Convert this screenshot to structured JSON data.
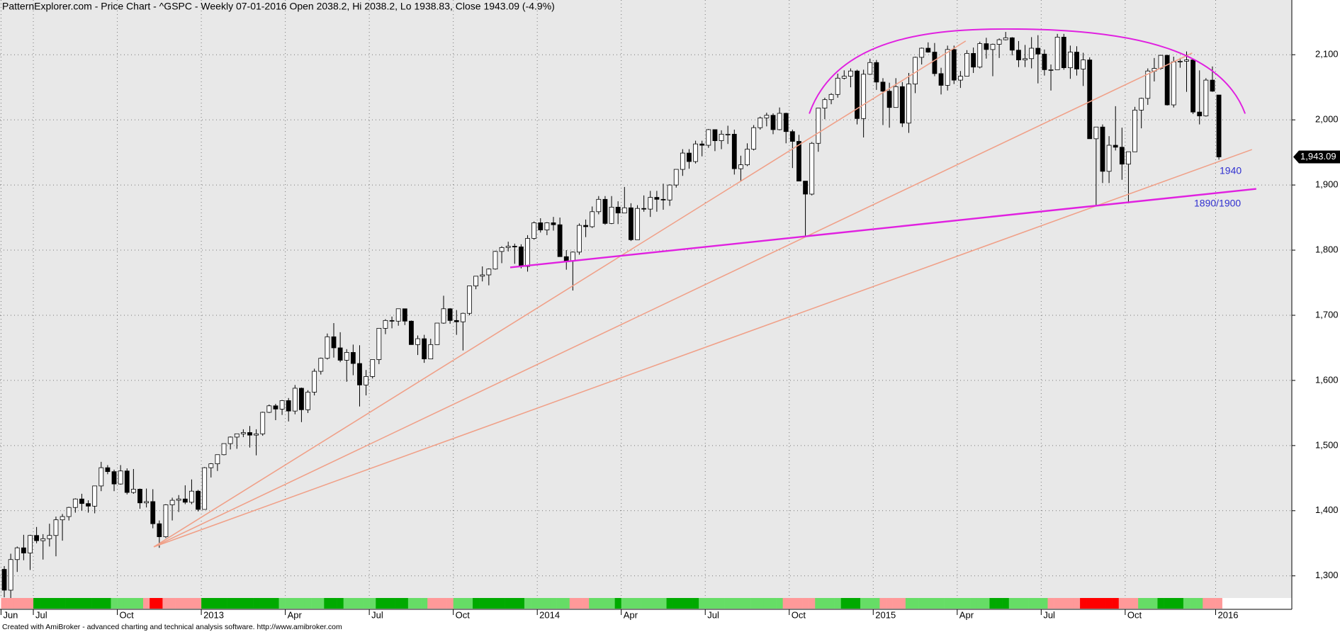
{
  "chart_data": {
    "type": "candlestick",
    "title": "PatternExplorer.com - Price Chart - ^GSPC - Weekly 07-01-2016 Open 2038.2, Hi 2038.2, Lo 1938.83, Close 1943.09 (-4.9%)",
    "categories": [
      "Jun",
      null,
      null,
      null,
      null,
      "Jul",
      null,
      null,
      null,
      null,
      null,
      null,
      null,
      null,
      null,
      null,
      null,
      null,
      "Oct",
      null,
      null,
      null,
      null,
      null,
      null,
      null,
      null,
      null,
      null,
      null,
      null,
      "2013",
      null,
      null,
      null,
      null,
      null,
      null,
      null,
      null,
      null,
      null,
      null,
      null,
      "Apr",
      null,
      null,
      null,
      null,
      null,
      null,
      null,
      null,
      null,
      null,
      null,
      null,
      "Jul",
      null,
      null,
      null,
      null,
      null,
      null,
      null,
      null,
      null,
      null,
      null,
      null,
      "Oct",
      null,
      null,
      null,
      null,
      null,
      null,
      null,
      null,
      null,
      null,
      null,
      null,
      "2014",
      null,
      null,
      null,
      null,
      null,
      null,
      null,
      null,
      null,
      null,
      null,
      null,
      "Apr",
      null,
      null,
      null,
      null,
      null,
      null,
      null,
      null,
      null,
      null,
      null,
      null,
      "Jul",
      null,
      null,
      null,
      null,
      null,
      null,
      null,
      null,
      null,
      null,
      null,
      null,
      "Oct",
      null,
      null,
      null,
      null,
      null,
      null,
      null,
      null,
      null,
      null,
      null,
      null,
      "2015",
      null,
      null,
      null,
      null,
      null,
      null,
      null,
      null,
      null,
      null,
      null,
      null,
      "Apr",
      null,
      null,
      null,
      null,
      null,
      null,
      null,
      null,
      null,
      null,
      null,
      null,
      "Jul",
      null,
      null,
      null,
      null,
      null,
      null,
      null,
      null,
      null,
      null,
      null,
      null,
      "Oct",
      null,
      null,
      null,
      null,
      null,
      null,
      null,
      null,
      null,
      null,
      null,
      null,
      null,
      "2016"
    ],
    "ohlc": [
      [
        1310,
        1315,
        1267,
        1278
      ],
      [
        1278,
        1334,
        1266,
        1325
      ],
      [
        1325,
        1345,
        1306,
        1343
      ],
      [
        1343,
        1363,
        1324,
        1335
      ],
      [
        1335,
        1363,
        1309,
        1362
      ],
      [
        1362,
        1375,
        1350,
        1354
      ],
      [
        1354,
        1364,
        1325,
        1357
      ],
      [
        1357,
        1380,
        1345,
        1362
      ],
      [
        1362,
        1391,
        1330,
        1386
      ],
      [
        1386,
        1395,
        1354,
        1391
      ],
      [
        1391,
        1406,
        1385,
        1405
      ],
      [
        1405,
        1419,
        1397,
        1418
      ],
      [
        1418,
        1426,
        1400,
        1411
      ],
      [
        1411,
        1416,
        1397,
        1407
      ],
      [
        1407,
        1438,
        1396,
        1438
      ],
      [
        1438,
        1475,
        1430,
        1466
      ],
      [
        1466,
        1470,
        1456,
        1460
      ],
      [
        1460,
        1463,
        1430,
        1441
      ],
      [
        1441,
        1470,
        1440,
        1461
      ],
      [
        1461,
        1465,
        1425,
        1428
      ],
      [
        1428,
        1464,
        1426,
        1433
      ],
      [
        1433,
        1434,
        1403,
        1412
      ],
      [
        1412,
        1434,
        1405,
        1414
      ],
      [
        1414,
        1433,
        1373,
        1380
      ],
      [
        1380,
        1385,
        1343,
        1360
      ],
      [
        1360,
        1410,
        1358,
        1409
      ],
      [
        1409,
        1420,
        1385,
        1416
      ],
      [
        1416,
        1424,
        1398,
        1418
      ],
      [
        1418,
        1439,
        1410,
        1413
      ],
      [
        1413,
        1448,
        1410,
        1430
      ],
      [
        1430,
        1432,
        1399,
        1402
      ],
      [
        1402,
        1467,
        1402,
        1466
      ],
      [
        1466,
        1473,
        1451,
        1472
      ],
      [
        1472,
        1486,
        1461,
        1486
      ],
      [
        1486,
        1503,
        1485,
        1503
      ],
      [
        1503,
        1514,
        1494,
        1513
      ],
      [
        1513,
        1518,
        1495,
        1518
      ],
      [
        1518,
        1525,
        1513,
        1520
      ],
      [
        1520,
        1530,
        1497,
        1516
      ],
      [
        1516,
        1525,
        1485,
        1518
      ],
      [
        1518,
        1552,
        1515,
        1551
      ],
      [
        1551,
        1563,
        1550,
        1561
      ],
      [
        1561,
        1564,
        1539,
        1556
      ],
      [
        1556,
        1570,
        1547,
        1569
      ],
      [
        1569,
        1573,
        1537,
        1553
      ],
      [
        1553,
        1593,
        1548,
        1588
      ],
      [
        1588,
        1589,
        1536,
        1555
      ],
      [
        1555,
        1585,
        1550,
        1582
      ],
      [
        1582,
        1618,
        1577,
        1614
      ],
      [
        1614,
        1635,
        1609,
        1634
      ],
      [
        1634,
        1672,
        1632,
        1667
      ],
      [
        1667,
        1688,
        1635,
        1650
      ],
      [
        1650,
        1674,
        1628,
        1631
      ],
      [
        1631,
        1648,
        1598,
        1643
      ],
      [
        1643,
        1655,
        1608,
        1626
      ],
      [
        1626,
        1654,
        1560,
        1593
      ],
      [
        1593,
        1616,
        1577,
        1606
      ],
      [
        1606,
        1632,
        1603,
        1632
      ],
      [
        1632,
        1680,
        1625,
        1680
      ],
      [
        1680,
        1694,
        1671,
        1692
      ],
      [
        1692,
        1698,
        1680,
        1691
      ],
      [
        1691,
        1710,
        1684,
        1710
      ],
      [
        1710,
        1710,
        1685,
        1691
      ],
      [
        1691,
        1692,
        1655,
        1655
      ],
      [
        1655,
        1669,
        1639,
        1664
      ],
      [
        1664,
        1670,
        1627,
        1633
      ],
      [
        1633,
        1664,
        1633,
        1655
      ],
      [
        1655,
        1688,
        1655,
        1688
      ],
      [
        1688,
        1730,
        1687,
        1710
      ],
      [
        1710,
        1711,
        1687,
        1692
      ],
      [
        1692,
        1708,
        1670,
        1690
      ],
      [
        1690,
        1704,
        1646,
        1703
      ],
      [
        1703,
        1745,
        1700,
        1745
      ],
      [
        1745,
        1760,
        1740,
        1760
      ],
      [
        1760,
        1775,
        1752,
        1762
      ],
      [
        1762,
        1772,
        1746,
        1771
      ],
      [
        1771,
        1799,
        1770,
        1798
      ],
      [
        1798,
        1806,
        1780,
        1804
      ],
      [
        1804,
        1813,
        1798,
        1806
      ],
      [
        1806,
        1810,
        1779,
        1805
      ],
      [
        1805,
        1809,
        1772,
        1775
      ],
      [
        1775,
        1823,
        1767,
        1818
      ],
      [
        1818,
        1844,
        1816,
        1842
      ],
      [
        1842,
        1849,
        1827,
        1831
      ],
      [
        1831,
        1843,
        1823,
        1842
      ],
      [
        1842,
        1851,
        1830,
        1839
      ],
      [
        1839,
        1850,
        1790,
        1790
      ],
      [
        1790,
        1800,
        1770,
        1783
      ],
      [
        1783,
        1798,
        1738,
        1797
      ],
      [
        1797,
        1841,
        1793,
        1838
      ],
      [
        1838,
        1847,
        1820,
        1836
      ],
      [
        1836,
        1867,
        1834,
        1859
      ],
      [
        1859,
        1883,
        1855,
        1878
      ],
      [
        1878,
        1883,
        1839,
        1841
      ],
      [
        1841,
        1883,
        1840,
        1866
      ],
      [
        1866,
        1875,
        1840,
        1857
      ],
      [
        1857,
        1897,
        1857,
        1865
      ],
      [
        1865,
        1872,
        1814,
        1816
      ],
      [
        1816,
        1869,
        1816,
        1864
      ],
      [
        1864,
        1884,
        1859,
        1863
      ],
      [
        1863,
        1891,
        1851,
        1881
      ],
      [
        1881,
        1891,
        1859,
        1878
      ],
      [
        1878,
        1902,
        1862,
        1877
      ],
      [
        1877,
        1901,
        1868,
        1900
      ],
      [
        1900,
        1924,
        1896,
        1924
      ],
      [
        1924,
        1955,
        1914,
        1949
      ],
      [
        1949,
        1955,
        1925,
        1936
      ],
      [
        1936,
        1968,
        1933,
        1963
      ],
      [
        1963,
        1968,
        1944,
        1961
      ],
      [
        1961,
        1986,
        1957,
        1985
      ],
      [
        1985,
        1985,
        1952,
        1968
      ],
      [
        1968,
        1984,
        1955,
        1978
      ],
      [
        1978,
        1991,
        1963,
        1978
      ],
      [
        1978,
        1985,
        1916,
        1925
      ],
      [
        1925,
        1945,
        1905,
        1931
      ],
      [
        1931,
        1964,
        1929,
        1955
      ],
      [
        1955,
        1992,
        1953,
        1988
      ],
      [
        1988,
        2005,
        1985,
        2003
      ],
      [
        2003,
        2011,
        1990,
        2007
      ],
      [
        2007,
        2010,
        1978,
        1985
      ],
      [
        1985,
        2019,
        1984,
        2010
      ],
      [
        2010,
        2011,
        1964,
        1982
      ],
      [
        1982,
        1985,
        1926,
        1967
      ],
      [
        1967,
        1977,
        1906,
        1906
      ],
      [
        1906,
        1906,
        1821,
        1886
      ],
      [
        1886,
        1966,
        1884,
        1964
      ],
      [
        1964,
        2018,
        1951,
        2018
      ],
      [
        2018,
        2034,
        2001,
        2031
      ],
      [
        2031,
        2041,
        2024,
        2039
      ],
      [
        2039,
        2071,
        2034,
        2064
      ],
      [
        2064,
        2076,
        2062,
        2067
      ],
      [
        2067,
        2079,
        2050,
        2075
      ],
      [
        2075,
        2077,
        1993,
        2002
      ],
      [
        2002,
        2077,
        1973,
        2070
      ],
      [
        2070,
        2094,
        2069,
        2088
      ],
      [
        2088,
        2092,
        2046,
        2058
      ],
      [
        2058,
        2064,
        1992,
        2044
      ],
      [
        2044,
        2057,
        1988,
        2019
      ],
      [
        2019,
        2064,
        2019,
        2051
      ],
      [
        2051,
        2058,
        1989,
        1995
      ],
      [
        1995,
        2072,
        1980,
        2055
      ],
      [
        2055,
        2097,
        2041,
        2096
      ],
      [
        2096,
        2111,
        2085,
        2110
      ],
      [
        2110,
        2119,
        2103,
        2104
      ],
      [
        2104,
        2118,
        2067,
        2071
      ],
      [
        2071,
        2080,
        2039,
        2053
      ],
      [
        2053,
        2114,
        2045,
        2108
      ],
      [
        2108,
        2114,
        2055,
        2061
      ],
      [
        2061,
        2075,
        2049,
        2067
      ],
      [
        2067,
        2107,
        2067,
        2102
      ],
      [
        2102,
        2111,
        2072,
        2081
      ],
      [
        2081,
        2120,
        2079,
        2117
      ],
      [
        2117,
        2126,
        2094,
        2108
      ],
      [
        2108,
        2117,
        2067,
        2116
      ],
      [
        2116,
        2125,
        2095,
        2123
      ],
      [
        2123,
        2135,
        2122,
        2126
      ],
      [
        2126,
        2127,
        2099,
        2107
      ],
      [
        2107,
        2121,
        2081,
        2092
      ],
      [
        2092,
        2115,
        2081,
        2094
      ],
      [
        2094,
        2127,
        2079,
        2110
      ],
      [
        2110,
        2130,
        2056,
        2101
      ],
      [
        2101,
        2108,
        2068,
        2077
      ],
      [
        2077,
        2085,
        2045,
        2077
      ],
      [
        2077,
        2132,
        2077,
        2127
      ],
      [
        2127,
        2132,
        2077,
        2080
      ],
      [
        2080,
        2114,
        2063,
        2104
      ],
      [
        2104,
        2113,
        2068,
        2078
      ],
      [
        2078,
        2103,
        2052,
        2092
      ],
      [
        2092,
        2096,
        1971,
        1971
      ],
      [
        1971,
        1989,
        1867,
        1989
      ],
      [
        1989,
        1993,
        1903,
        1921
      ],
      [
        1921,
        1975,
        1903,
        1961
      ],
      [
        1961,
        2021,
        1953,
        1958
      ],
      [
        1958,
        1988,
        1908,
        1932
      ],
      [
        1932,
        1951,
        1872,
        1951
      ],
      [
        1951,
        2020,
        1951,
        2015
      ],
      [
        2015,
        2034,
        1987,
        2033
      ],
      [
        2033,
        2079,
        2023,
        2075
      ],
      [
        2075,
        2095,
        2059,
        2079
      ],
      [
        2079,
        2100,
        2077,
        2099
      ],
      [
        2099,
        2100,
        2022,
        2023
      ],
      [
        2023,
        2097,
        2019,
        2089
      ],
      [
        2089,
        2095,
        2080,
        2090
      ],
      [
        2090,
        2105,
        2043,
        2092
      ],
      [
        2092,
        2093,
        2009,
        2012
      ],
      [
        2012,
        2076,
        1993,
        2006
      ],
      [
        2006,
        2064,
        2005,
        2061
      ],
      [
        2061,
        2082,
        2043,
        2044
      ],
      [
        2038.2,
        2038.2,
        1938.83,
        1943.09
      ]
    ],
    "up_color": "#ffffff",
    "down_color": "#000000",
    "ylim": [
      1266,
      2184
    ],
    "yticks": [
      {
        "value": 1300,
        "label": "1,300"
      },
      {
        "value": 1400,
        "label": "1,400"
      },
      {
        "value": 1500,
        "label": "1,500"
      },
      {
        "value": 1600,
        "label": "1,600"
      },
      {
        "value": 1700,
        "label": "1,700"
      },
      {
        "value": 1800,
        "label": "1,800"
      },
      {
        "value": 1900,
        "label": "1,900"
      },
      {
        "value": 2000,
        "label": "2,000"
      },
      {
        "value": 2100,
        "label": "2,100"
      }
    ],
    "grid": true,
    "last_label": "1,943.09",
    "annotations": [
      "1940",
      "1890/1900"
    ],
    "ribbon_colors": [
      "#f99",
      "#f99",
      "#f99",
      "#f99",
      "#f99",
      "#0a0",
      "#0a0",
      "#0a0",
      "#0a0",
      "#0a0",
      "#0a0",
      "#0a0",
      "#0a0",
      "#0a0",
      "#0a0",
      "#0a0",
      "#0a0",
      "#6d6",
      "#6d6",
      "#6d6",
      "#6d6",
      "#6d6",
      "#f99",
      "#f00",
      "#f00",
      "#f99",
      "#f99",
      "#f99",
      "#f99",
      "#f99",
      "#f99",
      "#0a0",
      "#0a0",
      "#0a0",
      "#0a0",
      "#0a0",
      "#0a0",
      "#0a0",
      "#0a0",
      "#0a0",
      "#0a0",
      "#0a0",
      "#0a0",
      "#6d6",
      "#6d6",
      "#6d6",
      "#6d6",
      "#6d6",
      "#6d6",
      "#6d6",
      "#0a0",
      "#0a0",
      "#0a0",
      "#6d6",
      "#6d6",
      "#6d6",
      "#6d6",
      "#6d6",
      "#0a0",
      "#0a0",
      "#0a0",
      "#0a0",
      "#0a0",
      "#6d6",
      "#6d6",
      "#6d6",
      "#f99",
      "#f99",
      "#f99",
      "#f99",
      "#6d6",
      "#6d6",
      "#6d6",
      "#0a0",
      "#0a0",
      "#0a0",
      "#0a0",
      "#0a0",
      "#0a0",
      "#0a0",
      "#0a0",
      "#6d6",
      "#6d6",
      "#6d6",
      "#6d6",
      "#6d6",
      "#6d6",
      "#6d6",
      "#f99",
      "#f99",
      "#f99",
      "#6d6",
      "#6d6",
      "#6d6",
      "#6d6",
      "#0a0",
      "#6d6",
      "#6d6",
      "#6d6",
      "#6d6",
      "#6d6",
      "#6d6",
      "#6d6",
      "#0a0",
      "#0a0",
      "#0a0",
      "#0a0",
      "#0a0",
      "#6d6",
      "#6d6",
      "#6d6",
      "#6d6",
      "#6d6",
      "#6d6",
      "#6d6",
      "#6d6",
      "#6d6",
      "#6d6",
      "#6d6",
      "#6d6",
      "#6d6",
      "#f99",
      "#f99",
      "#f99",
      "#f99",
      "#f99",
      "#6d6",
      "#6d6",
      "#6d6",
      "#6d6",
      "#0a0",
      "#0a0",
      "#0a0",
      "#6d6",
      "#6d6",
      "#6d6",
      "#f99",
      "#f99",
      "#f99",
      "#f99",
      "#6d6",
      "#6d6",
      "#6d6",
      "#6d6",
      "#6d6",
      "#6d6",
      "#6d6",
      "#6d6",
      "#6d6",
      "#6d6",
      "#6d6",
      "#6d6",
      "#6d6",
      "#0a0",
      "#0a0",
      "#0a0",
      "#6d6",
      "#6d6",
      "#6d6",
      "#6d6",
      "#6d6",
      "#6d6",
      "#f99",
      "#f99",
      "#f99",
      "#f99",
      "#f99",
      "#f00",
      "#f00",
      "#f00",
      "#f00",
      "#f00",
      "#f00",
      "#f99",
      "#f99",
      "#f99",
      "#6d6",
      "#6d6",
      "#6d6",
      "#0a0",
      "#0a0",
      "#0a0",
      "#0a0",
      "#6d6",
      "#6d6",
      "#6d6",
      "#f99",
      "#f99",
      "#f99"
    ],
    "footer": "Created with AmiBroker - advanced charting and technical analysis software. http://www.amibroker.com"
  }
}
